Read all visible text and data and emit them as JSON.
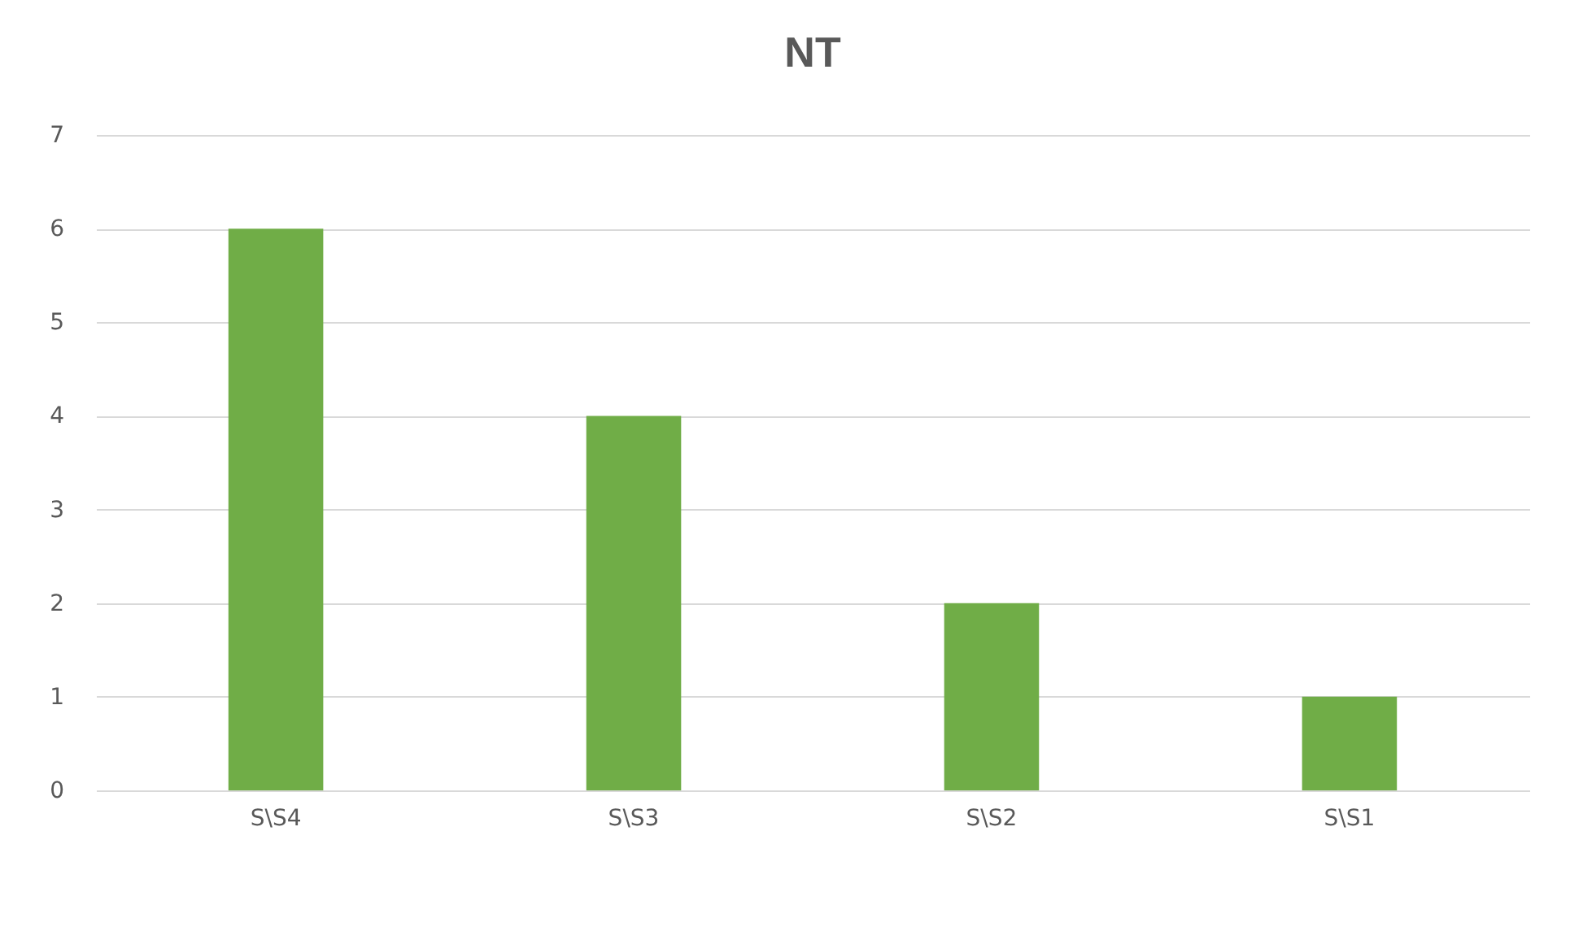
{
  "chart_data": {
    "type": "bar",
    "title": "NT",
    "categories": [
      "S\\S4",
      "S\\S3",
      "S\\S2",
      "S\\S1"
    ],
    "values": [
      6,
      4,
      2,
      1
    ],
    "color": "#70ad47",
    "ylim": [
      0,
      7
    ],
    "yticks": [
      0,
      1,
      2,
      3,
      4,
      5,
      6,
      7
    ],
    "grid": "y"
  }
}
